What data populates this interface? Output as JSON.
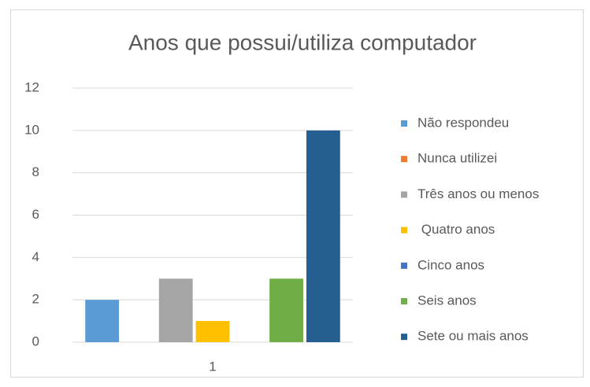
{
  "chart_data": {
    "type": "bar",
    "title": "Anos que possui/utiliza computador",
    "categories": [
      "1"
    ],
    "series": [
      {
        "name": "Não respondeu",
        "color": "#5b9bd5",
        "values": [
          2
        ]
      },
      {
        "name": "Nunca utilizei",
        "color": "#ed7d31",
        "values": [
          0
        ]
      },
      {
        "name": "Três anos ou menos",
        "color": "#a5a5a5",
        "values": [
          3
        ]
      },
      {
        "name": " Quatro anos",
        "color": "#ffc000",
        "values": [
          1
        ]
      },
      {
        "name": "Cinco anos",
        "color": "#4472c4",
        "values": [
          0
        ]
      },
      {
        "name": "Seis anos",
        "color": "#70ad47",
        "values": [
          3
        ]
      },
      {
        "name": "Sete ou mais anos",
        "color": "#255e91",
        "values": [
          10
        ]
      }
    ],
    "ylim": [
      0,
      12
    ],
    "yticks": [
      0,
      2,
      4,
      6,
      8,
      10,
      12
    ],
    "grid": true,
    "legend": "right"
  }
}
